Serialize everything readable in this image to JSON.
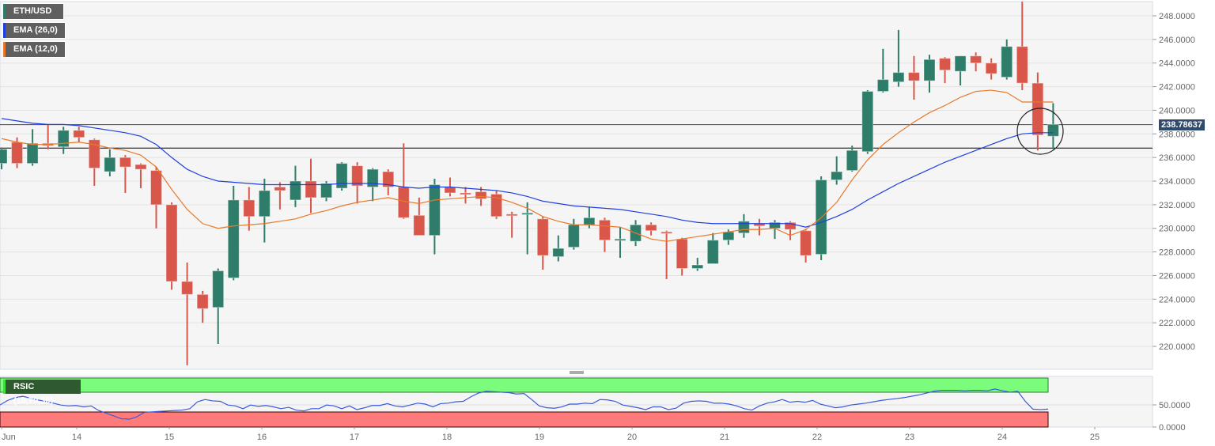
{
  "legend": {
    "symbol": "ETH/USD",
    "ema_slow": "EMA (26,0)",
    "ema_fast": "EMA (12,0)",
    "symbol_color": "#2e7d6a",
    "ema_slow_color": "#1f3fe0",
    "ema_fast_color": "#e8792a"
  },
  "current_price_label": "238.78637",
  "rsi": {
    "label": "RSIC (10,70,30)",
    "y_ticks": [
      "50.0000",
      "0.0000"
    ],
    "overbought_color": "#7cfc7c",
    "oversold_color": "#ff7b7b"
  },
  "chart_data": {
    "type": "candlestick",
    "title": "ETH/USD",
    "xlabel": "",
    "ylabel": "",
    "ylim": [
      218.5,
      249.3
    ],
    "y_ticks": [
      "248.0000",
      "246.0000",
      "244.0000",
      "242.0000",
      "240.0000",
      "238.0000",
      "236.0000",
      "234.0000",
      "232.0000",
      "230.0000",
      "228.0000",
      "226.0000",
      "224.0000",
      "222.0000",
      "220.0000"
    ],
    "x_ticks": [
      "Jun",
      "14",
      "15",
      "16",
      "17",
      "18",
      "19",
      "20",
      "21",
      "22",
      "23",
      "24",
      "25"
    ],
    "horizontal_lines": [
      {
        "value": 238.786,
        "color": "#2e4a6e"
      },
      {
        "value": 236.8,
        "color": "#000000"
      }
    ],
    "annotation": {
      "type": "circle",
      "around": "last candle near 238.2"
    },
    "candles": [
      {
        "o": 235.5,
        "h": 236.8,
        "l": 235.0,
        "c": 236.7
      },
      {
        "o": 237.3,
        "h": 237.7,
        "l": 235.1,
        "c": 235.5
      },
      {
        "o": 235.5,
        "h": 238.4,
        "l": 235.3,
        "c": 237.2
      },
      {
        "o": 237.2,
        "h": 238.8,
        "l": 236.7,
        "c": 237.0
      },
      {
        "o": 236.9,
        "h": 238.6,
        "l": 236.3,
        "c": 238.3
      },
      {
        "o": 238.3,
        "h": 238.6,
        "l": 237.3,
        "c": 237.7
      },
      {
        "o": 237.5,
        "h": 237.6,
        "l": 233.6,
        "c": 235.1
      },
      {
        "o": 234.8,
        "h": 236.7,
        "l": 234.4,
        "c": 236.0
      },
      {
        "o": 236.0,
        "h": 236.2,
        "l": 233.0,
        "c": 235.2
      },
      {
        "o": 235.4,
        "h": 235.5,
        "l": 233.4,
        "c": 235.0
      },
      {
        "o": 234.9,
        "h": 235.2,
        "l": 230.0,
        "c": 232.0
      },
      {
        "o": 232.0,
        "h": 232.2,
        "l": 224.8,
        "c": 225.5
      },
      {
        "o": 225.5,
        "h": 227.1,
        "l": 218.4,
        "c": 224.4
      },
      {
        "o": 224.4,
        "h": 224.7,
        "l": 222.0,
        "c": 223.2
      },
      {
        "o": 223.3,
        "h": 226.6,
        "l": 220.2,
        "c": 226.4
      },
      {
        "o": 225.8,
        "h": 233.6,
        "l": 225.6,
        "c": 232.4
      },
      {
        "o": 232.4,
        "h": 233.5,
        "l": 229.8,
        "c": 231.0
      },
      {
        "o": 231.0,
        "h": 234.2,
        "l": 228.8,
        "c": 233.2
      },
      {
        "o": 233.5,
        "h": 233.9,
        "l": 231.6,
        "c": 233.2
      },
      {
        "o": 232.4,
        "h": 235.3,
        "l": 231.8,
        "c": 234.0
      },
      {
        "o": 234.0,
        "h": 235.9,
        "l": 231.3,
        "c": 232.6
      },
      {
        "o": 232.6,
        "h": 234.0,
        "l": 232.3,
        "c": 233.8
      },
      {
        "o": 233.4,
        "h": 235.6,
        "l": 233.2,
        "c": 235.5
      },
      {
        "o": 235.3,
        "h": 235.6,
        "l": 232.1,
        "c": 233.6
      },
      {
        "o": 233.5,
        "h": 235.1,
        "l": 232.3,
        "c": 235.0
      },
      {
        "o": 234.8,
        "h": 235.0,
        "l": 232.8,
        "c": 233.5
      },
      {
        "o": 233.5,
        "h": 237.2,
        "l": 230.8,
        "c": 230.9
      },
      {
        "o": 231.1,
        "h": 232.6,
        "l": 229.8,
        "c": 229.4
      },
      {
        "o": 229.4,
        "h": 234.2,
        "l": 227.8,
        "c": 233.7
      },
      {
        "o": 233.5,
        "h": 234.3,
        "l": 232.7,
        "c": 233.0
      },
      {
        "o": 233.0,
        "h": 233.5,
        "l": 232.1,
        "c": 232.9
      },
      {
        "o": 233.1,
        "h": 233.5,
        "l": 231.9,
        "c": 232.5
      },
      {
        "o": 232.9,
        "h": 233.2,
        "l": 230.8,
        "c": 231.0
      },
      {
        "o": 231.2,
        "h": 231.4,
        "l": 229.2,
        "c": 231.1
      },
      {
        "o": 231.2,
        "h": 232.2,
        "l": 227.8,
        "c": 231.3
      },
      {
        "o": 230.8,
        "h": 231.0,
        "l": 226.5,
        "c": 227.7
      },
      {
        "o": 227.6,
        "h": 229.4,
        "l": 227.2,
        "c": 228.3
      },
      {
        "o": 228.4,
        "h": 230.8,
        "l": 228.2,
        "c": 230.3
      },
      {
        "o": 230.3,
        "h": 231.8,
        "l": 230.0,
        "c": 230.9
      },
      {
        "o": 230.7,
        "h": 230.9,
        "l": 228.0,
        "c": 229.0
      },
      {
        "o": 229.1,
        "h": 230.1,
        "l": 227.5,
        "c": 229.1
      },
      {
        "o": 228.9,
        "h": 230.7,
        "l": 228.5,
        "c": 230.3
      },
      {
        "o": 230.3,
        "h": 230.5,
        "l": 229.4,
        "c": 229.8
      },
      {
        "o": 229.7,
        "h": 229.8,
        "l": 225.7,
        "c": 229.6
      },
      {
        "o": 229.1,
        "h": 229.2,
        "l": 226.0,
        "c": 226.6
      },
      {
        "o": 226.6,
        "h": 227.5,
        "l": 226.4,
        "c": 226.9
      },
      {
        "o": 227.0,
        "h": 229.6,
        "l": 227.0,
        "c": 229.0
      },
      {
        "o": 229.0,
        "h": 229.9,
        "l": 228.6,
        "c": 229.7
      },
      {
        "o": 229.6,
        "h": 231.2,
        "l": 229.2,
        "c": 230.6
      },
      {
        "o": 230.4,
        "h": 230.8,
        "l": 229.4,
        "c": 230.2
      },
      {
        "o": 230.0,
        "h": 230.7,
        "l": 229.1,
        "c": 230.5
      },
      {
        "o": 230.5,
        "h": 230.6,
        "l": 229.0,
        "c": 229.9
      },
      {
        "o": 229.8,
        "h": 229.9,
        "l": 227.1,
        "c": 227.7
      },
      {
        "o": 227.8,
        "h": 234.4,
        "l": 227.3,
        "c": 234.1
      },
      {
        "o": 234.1,
        "h": 236.1,
        "l": 233.7,
        "c": 234.8
      },
      {
        "o": 234.9,
        "h": 237.0,
        "l": 234.8,
        "c": 236.6
      },
      {
        "o": 236.5,
        "h": 241.7,
        "l": 236.3,
        "c": 241.6
      },
      {
        "o": 241.6,
        "h": 245.2,
        "l": 241.5,
        "c": 242.6
      },
      {
        "o": 242.4,
        "h": 246.8,
        "l": 242.0,
        "c": 243.2
      },
      {
        "o": 243.2,
        "h": 244.6,
        "l": 240.9,
        "c": 242.5
      },
      {
        "o": 242.5,
        "h": 244.7,
        "l": 241.5,
        "c": 244.3
      },
      {
        "o": 244.4,
        "h": 244.5,
        "l": 242.3,
        "c": 243.4
      },
      {
        "o": 243.3,
        "h": 244.6,
        "l": 242.1,
        "c": 244.6
      },
      {
        "o": 244.6,
        "h": 244.9,
        "l": 243.3,
        "c": 244.0
      },
      {
        "o": 244.0,
        "h": 244.4,
        "l": 242.6,
        "c": 243.1
      },
      {
        "o": 242.8,
        "h": 246.0,
        "l": 242.6,
        "c": 245.4
      },
      {
        "o": 245.4,
        "h": 249.2,
        "l": 241.7,
        "c": 242.3
      },
      {
        "o": 242.3,
        "h": 243.2,
        "l": 236.6,
        "c": 237.9
      },
      {
        "o": 237.8,
        "h": 240.6,
        "l": 236.7,
        "c": 238.8
      }
    ],
    "series": [
      {
        "name": "EMA (26,0)",
        "color": "#1f3fe0",
        "values": [
          239.3,
          239.1,
          238.9,
          238.8,
          238.8,
          238.7,
          238.5,
          238.3,
          238.1,
          237.8,
          237.1,
          236.0,
          235.0,
          234.4,
          234.0,
          233.9,
          233.8,
          233.7,
          233.7,
          233.7,
          233.7,
          233.7,
          233.8,
          233.8,
          233.8,
          233.7,
          233.5,
          233.4,
          233.5,
          233.5,
          233.4,
          233.3,
          233.2,
          233.0,
          232.7,
          232.3,
          232.1,
          231.9,
          231.8,
          231.7,
          231.6,
          231.4,
          231.2,
          231.0,
          230.7,
          230.5,
          230.4,
          230.4,
          230.4,
          230.4,
          230.4,
          230.4,
          230.1,
          230.5,
          231.0,
          231.6,
          232.4,
          233.1,
          233.8,
          234.4,
          235.0,
          235.6,
          236.1,
          236.6,
          237.1,
          237.6,
          238.0,
          238.1,
          238.1
        ]
      },
      {
        "name": "EMA (12,0)",
        "color": "#e8792a",
        "values": [
          237.6,
          237.3,
          237.1,
          237.1,
          237.2,
          237.3,
          237.1,
          236.8,
          236.6,
          236.2,
          235.2,
          233.3,
          231.6,
          230.4,
          230.0,
          230.2,
          230.3,
          230.4,
          230.6,
          230.8,
          231.2,
          231.5,
          231.9,
          232.2,
          232.4,
          232.6,
          232.3,
          232.1,
          232.4,
          232.5,
          232.6,
          232.7,
          232.6,
          232.2,
          231.7,
          231.0,
          230.6,
          230.3,
          230.3,
          230.2,
          230.1,
          229.6,
          229.1,
          228.9,
          229.1,
          229.3,
          229.5,
          229.7,
          229.9,
          229.9,
          230.0,
          229.4,
          229.9,
          230.9,
          232.2,
          234.1,
          235.8,
          237.1,
          238.1,
          239.0,
          239.8,
          240.4,
          241.1,
          241.6,
          241.7,
          241.5,
          240.7,
          240.7,
          240.7
        ]
      },
      {
        "name": "RSIC (10,70,30)",
        "color": "#3a5bdc",
        "panel": "rsi",
        "ylim": [
          0,
          100
        ],
        "values": [
          48,
          58,
          64,
          67,
          63,
          59,
          56,
          52,
          48,
          46,
          47,
          44,
          46,
          36,
          30,
          24,
          18,
          17,
          22,
          32,
          33,
          34,
          35,
          36,
          37,
          40,
          55,
          60,
          57,
          56,
          48,
          46,
          40,
          48,
          45,
          47,
          44,
          40,
          43,
          37,
          35,
          40,
          40,
          48,
          46,
          40,
          46,
          38,
          42,
          47,
          47,
          51,
          46,
          44,
          48,
          52,
          50,
          44,
          51,
          52,
          55,
          56,
          66,
          74,
          78,
          77,
          76,
          75,
          72,
          73,
          60,
          46,
          42,
          41,
          44,
          50,
          50,
          52,
          51,
          60,
          59,
          56,
          48,
          45,
          42,
          38,
          44,
          44,
          38,
          41,
          52,
          56,
          57,
          56,
          52,
          52,
          50,
          46,
          40,
          37,
          46,
          52,
          55,
          60,
          54,
          56,
          54,
          58,
          50,
          46,
          42,
          44,
          48,
          50,
          52,
          55,
          58,
          60,
          62,
          64,
          67,
          70,
          74,
          78,
          80,
          80,
          80,
          79,
          80,
          80,
          79,
          83,
          79,
          76,
          78,
          56,
          39,
          38,
          39
        ]
      }
    ]
  }
}
